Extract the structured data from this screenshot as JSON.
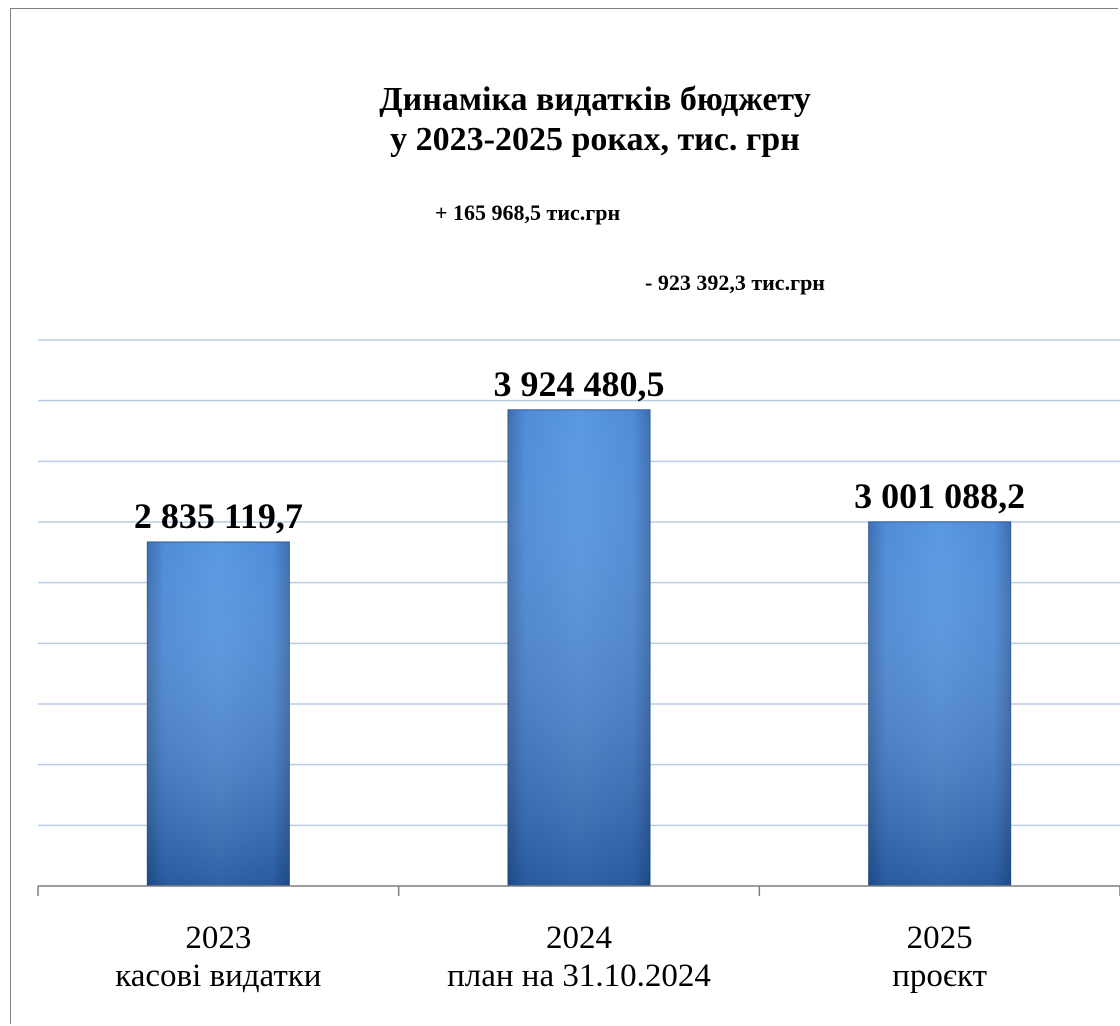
{
  "chart_data": {
    "type": "bar",
    "title": "Динаміка видатків бюджету",
    "subtitle": "у 2023-2025 роках, тис. грн",
    "annotations": [
      "+ 165 968,5 тис.грн",
      "- 923 392,3 тис.грн"
    ],
    "categories": [
      "2023",
      "2024",
      "2025"
    ],
    "category_sublabels": [
      "касові видатки",
      "план на 31.10.2024",
      "проєкт"
    ],
    "values": [
      2835119.7,
      3924480.5,
      3001088.2
    ],
    "value_labels": [
      "2 835 119,7",
      "3 924 480,5",
      "3 001 088,2"
    ],
    "xlabel": "",
    "ylabel": "",
    "ylim": [
      0,
      4500000
    ],
    "grid": true,
    "bar_color": "#3a7bd0"
  }
}
